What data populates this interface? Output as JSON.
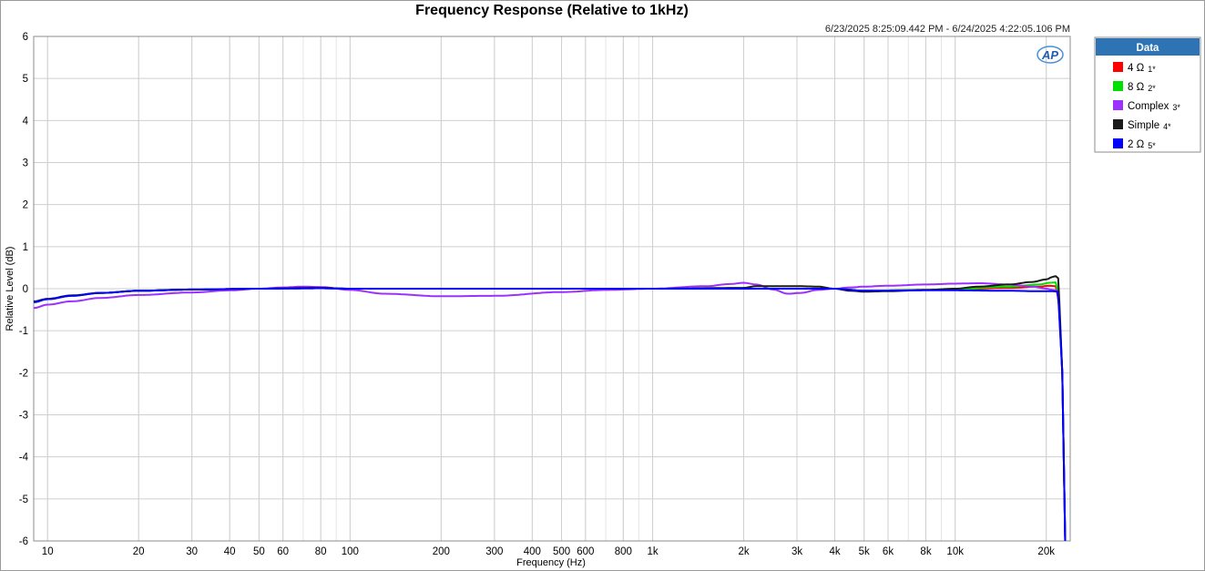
{
  "chart_data": {
    "type": "line",
    "title": "Frequency Response (Relative to 1kHz)",
    "subtitle": "6/23/2025 8:25:09.442 PM - 6/24/2025 4:22:05.106 PM",
    "xlabel": "Frequency (Hz)",
    "ylabel": "Relative Level (dB)",
    "xscale": "log",
    "xlim": [
      9,
      24000
    ],
    "ylim": [
      -6,
      6
    ],
    "grid": true,
    "legend_position": "right",
    "legend_title": "Data",
    "x_ticks": [
      {
        "v": 10,
        "label": "10"
      },
      {
        "v": 20,
        "label": "20"
      },
      {
        "v": 30,
        "label": "30"
      },
      {
        "v": 40,
        "label": "40"
      },
      {
        "v": 50,
        "label": "50"
      },
      {
        "v": 60,
        "label": "60"
      },
      {
        "v": 80,
        "label": "80"
      },
      {
        "v": 100,
        "label": "100"
      },
      {
        "v": 200,
        "label": "200"
      },
      {
        "v": 300,
        "label": "300"
      },
      {
        "v": 400,
        "label": "400"
      },
      {
        "v": 500,
        "label": "500"
      },
      {
        "v": 600,
        "label": "600"
      },
      {
        "v": 800,
        "label": "800"
      },
      {
        "v": 1000,
        "label": "1k"
      },
      {
        "v": 2000,
        "label": "2k"
      },
      {
        "v": 3000,
        "label": "3k"
      },
      {
        "v": 4000,
        "label": "4k"
      },
      {
        "v": 5000,
        "label": "5k"
      },
      {
        "v": 6000,
        "label": "6k"
      },
      {
        "v": 8000,
        "label": "8k"
      },
      {
        "v": 10000,
        "label": "10k"
      },
      {
        "v": 20000,
        "label": "20k"
      }
    ],
    "y_ticks": [
      6,
      5,
      4,
      3,
      2,
      1,
      0,
      -1,
      -2,
      -3,
      -4,
      -5,
      -6
    ],
    "series": [
      {
        "name": "4 Ω",
        "index": "1*",
        "color": "#ff0000",
        "points": [
          [
            9,
            -0.32
          ],
          [
            10,
            -0.25
          ],
          [
            12,
            -0.17
          ],
          [
            15,
            -0.1
          ],
          [
            20,
            -0.05
          ],
          [
            30,
            -0.02
          ],
          [
            50,
            0.0
          ],
          [
            80,
            0.01
          ],
          [
            100,
            0.0
          ],
          [
            1000,
            0.0
          ],
          [
            2000,
            0.0
          ],
          [
            3000,
            0.0
          ],
          [
            4000,
            0.0
          ],
          [
            5000,
            -0.05
          ],
          [
            8000,
            -0.03
          ],
          [
            10000,
            -0.02
          ],
          [
            15000,
            0.02
          ],
          [
            19000,
            0.05
          ],
          [
            20500,
            0.07
          ],
          [
            21500,
            0.06
          ],
          [
            22000,
            -0.3
          ],
          [
            22600,
            -2.0
          ],
          [
            23100,
            -6.0
          ]
        ]
      },
      {
        "name": "8 Ω",
        "index": "2*",
        "color": "#00e000",
        "points": [
          [
            9,
            -0.32
          ],
          [
            10,
            -0.25
          ],
          [
            12,
            -0.17
          ],
          [
            15,
            -0.1
          ],
          [
            20,
            -0.05
          ],
          [
            30,
            -0.02
          ],
          [
            50,
            0.0
          ],
          [
            80,
            0.01
          ],
          [
            100,
            0.0
          ],
          [
            1000,
            0.0
          ],
          [
            2000,
            0.0
          ],
          [
            3000,
            0.0
          ],
          [
            4000,
            0.0
          ],
          [
            5000,
            -0.05
          ],
          [
            8000,
            -0.03
          ],
          [
            10000,
            -0.01
          ],
          [
            15000,
            0.05
          ],
          [
            19000,
            0.1
          ],
          [
            20500,
            0.14
          ],
          [
            21500,
            0.15
          ],
          [
            22000,
            -0.2
          ],
          [
            22600,
            -2.0
          ],
          [
            23100,
            -6.0
          ]
        ]
      },
      {
        "name": "Complex",
        "index": "3*",
        "color": "#9b30ff",
        "points": [
          [
            9,
            -0.46
          ],
          [
            10,
            -0.38
          ],
          [
            12,
            -0.3
          ],
          [
            15,
            -0.22
          ],
          [
            20,
            -0.15
          ],
          [
            30,
            -0.09
          ],
          [
            40,
            -0.04
          ],
          [
            50,
            0.0
          ],
          [
            60,
            0.03
          ],
          [
            70,
            0.05
          ],
          [
            80,
            0.04
          ],
          [
            100,
            -0.03
          ],
          [
            130,
            -0.12
          ],
          [
            200,
            -0.18
          ],
          [
            300,
            -0.17
          ],
          [
            500,
            -0.08
          ],
          [
            700,
            -0.03
          ],
          [
            1000,
            0.0
          ],
          [
            1500,
            0.06
          ],
          [
            1800,
            0.11
          ],
          [
            2000,
            0.14
          ],
          [
            2200,
            0.1
          ],
          [
            2500,
            -0.02
          ],
          [
            2800,
            -0.12
          ],
          [
            3100,
            -0.1
          ],
          [
            3500,
            -0.03
          ],
          [
            4000,
            0.0
          ],
          [
            4500,
            0.03
          ],
          [
            5000,
            0.05
          ],
          [
            6000,
            0.07
          ],
          [
            8000,
            0.1
          ],
          [
            10000,
            0.12
          ],
          [
            12000,
            0.13
          ],
          [
            15000,
            0.1
          ],
          [
            18000,
            0.05
          ],
          [
            20000,
            0.0
          ],
          [
            21000,
            -0.03
          ],
          [
            21800,
            -0.05
          ],
          [
            22000,
            -0.3
          ],
          [
            22600,
            -2.0
          ],
          [
            23100,
            -6.0
          ]
        ]
      },
      {
        "name": "Simple",
        "index": "4*",
        "color": "#1a1a1a",
        "points": [
          [
            9,
            -0.3
          ],
          [
            10,
            -0.24
          ],
          [
            12,
            -0.16
          ],
          [
            15,
            -0.1
          ],
          [
            20,
            -0.05
          ],
          [
            30,
            -0.02
          ],
          [
            50,
            0.0
          ],
          [
            80,
            0.02
          ],
          [
            100,
            0.0
          ],
          [
            1000,
            0.0
          ],
          [
            2000,
            0.02
          ],
          [
            2200,
            0.06
          ],
          [
            3000,
            0.06
          ],
          [
            3500,
            0.05
          ],
          [
            4000,
            0.0
          ],
          [
            4500,
            -0.05
          ],
          [
            5000,
            -0.07
          ],
          [
            6000,
            -0.06
          ],
          [
            8000,
            -0.03
          ],
          [
            10000,
            0.0
          ],
          [
            12000,
            0.05
          ],
          [
            15000,
            0.1
          ],
          [
            18000,
            0.16
          ],
          [
            20000,
            0.22
          ],
          [
            21000,
            0.28
          ],
          [
            21500,
            0.3
          ],
          [
            21900,
            0.25
          ],
          [
            22100,
            -0.3
          ],
          [
            22600,
            -2.0
          ],
          [
            23100,
            -6.0
          ]
        ]
      },
      {
        "name": "2 Ω",
        "index": "5*",
        "color": "#0000ff",
        "points": [
          [
            9,
            -0.32
          ],
          [
            10,
            -0.25
          ],
          [
            12,
            -0.17
          ],
          [
            15,
            -0.1
          ],
          [
            20,
            -0.05
          ],
          [
            30,
            -0.02
          ],
          [
            50,
            0.0
          ],
          [
            80,
            0.01
          ],
          [
            100,
            0.0
          ],
          [
            1000,
            0.0
          ],
          [
            2000,
            0.0
          ],
          [
            3000,
            0.0
          ],
          [
            4000,
            0.0
          ],
          [
            5000,
            -0.05
          ],
          [
            8000,
            -0.04
          ],
          [
            10000,
            -0.04
          ],
          [
            15000,
            -0.05
          ],
          [
            19000,
            -0.06
          ],
          [
            21000,
            -0.06
          ],
          [
            21800,
            -0.07
          ],
          [
            22000,
            -0.4
          ],
          [
            22600,
            -2.0
          ],
          [
            23100,
            -6.0
          ]
        ]
      }
    ]
  }
}
